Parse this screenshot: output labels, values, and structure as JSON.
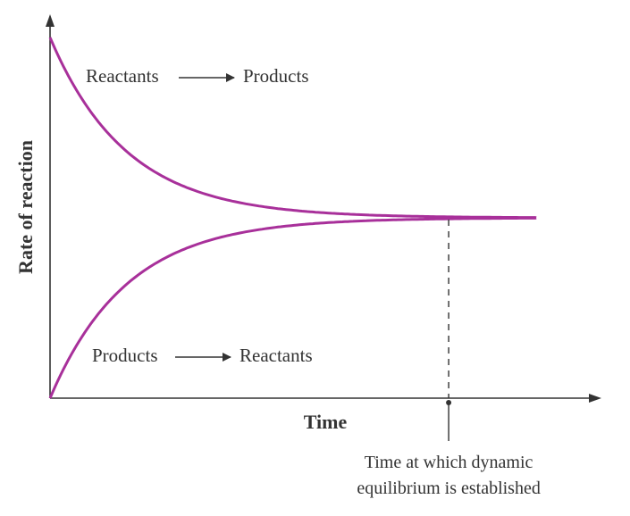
{
  "chart_data": {
    "type": "line",
    "xlabel": "Time",
    "ylabel": "Rate of reaction",
    "x_ticks": "none",
    "y_ticks": "none",
    "grid": false,
    "series": [
      {
        "name": "Reactants → Products",
        "shape": "exponential decay, levelling off at equilibrium rate",
        "start_fraction": 1.0,
        "equilibrium_fraction": 0.5
      },
      {
        "name": "Products → Reactants",
        "shape": "exponential rise from zero, levelling off at equilibrium rate",
        "start_fraction": 0.0,
        "equilibrium_fraction": 0.5
      }
    ],
    "equilibrium_time_fraction": 0.82,
    "annotations": {
      "forward": {
        "from": "Reactants",
        "to": "Products"
      },
      "reverse": {
        "from": "Products",
        "to": "Reactants"
      },
      "equilibrium_line1": "Time at which dynamic",
      "equilibrium_line2": "equilibrium is established"
    },
    "colors": {
      "curve": "#a8309a",
      "axis": "#333333"
    }
  }
}
